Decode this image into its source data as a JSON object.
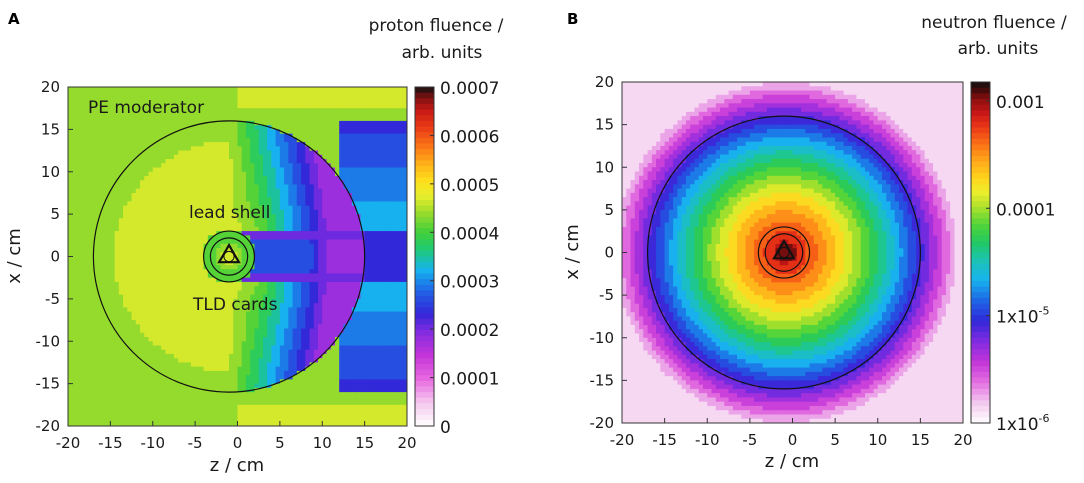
{
  "chart_data": [
    {
      "type": "heatmap",
      "panel": "A",
      "xlabel": "z / cm",
      "ylabel": "x / cm",
      "xlim": [
        -20,
        20
      ],
      "ylim": [
        -20,
        20
      ],
      "x_ticks": [
        "-20",
        "-15",
        "-10",
        "-5",
        "0",
        "5",
        "10",
        "15",
        "20"
      ],
      "y_ticks": [
        "20",
        "15",
        "10",
        "5",
        "0",
        "-5",
        "-10",
        "-15",
        "-20"
      ],
      "colorbar": {
        "title_line1": "proton fluence /",
        "title_line2": "arb. units",
        "scale": "linear",
        "range": [
          0,
          0.0007
        ],
        "tick_labels": [
          "0.0007",
          "0.0006",
          "0.0005",
          "0.0004",
          "0.0003",
          "0.0002",
          "0.0001",
          "0"
        ],
        "tick_values": [
          0.0007,
          0.0006,
          0.0005,
          0.0004,
          0.0003,
          0.0002,
          0.0001,
          0
        ]
      },
      "moderator_circle": {
        "center_z": -1,
        "center_x": 0,
        "radius": 16
      },
      "annotations": {
        "pe_moderator": "PE moderator",
        "lead_shell": "lead shell",
        "tld_cards": "TLD cards"
      }
    },
    {
      "type": "heatmap",
      "panel": "B",
      "xlabel": "z / cm",
      "ylabel": "x / cm",
      "xlim": [
        -20,
        20
      ],
      "ylim": [
        -20,
        20
      ],
      "x_ticks": [
        "-20",
        "-15",
        "-10",
        "-5",
        "0",
        "5",
        "10",
        "15",
        "20"
      ],
      "y_ticks": [
        "20",
        "15",
        "10",
        "5",
        "0",
        "-5",
        "-10",
        "-15",
        "-20"
      ],
      "colorbar": {
        "title_line1": "neutron fluence /",
        "title_line2": "arb. units",
        "scale": "log",
        "range": [
          1e-06,
          0.0015
        ],
        "tick_labels": [
          "0.001",
          "0.0001",
          "1x10",
          "1x10"
        ],
        "tick_exponents": [
          "",
          "",
          "-5",
          "-6"
        ],
        "tick_values": [
          0.001,
          0.0001,
          1e-05,
          1e-06
        ]
      },
      "moderator_circle": {
        "center_z": -1,
        "center_x": 0,
        "radius": 16
      }
    }
  ]
}
